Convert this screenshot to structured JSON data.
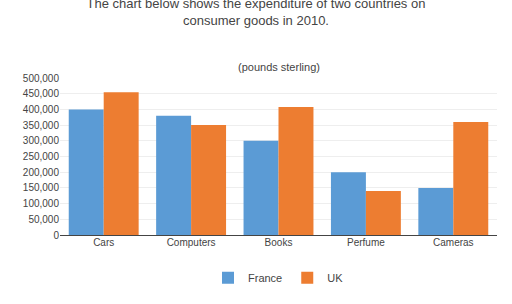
{
  "chart_data": {
    "type": "bar",
    "title": "The chart below shows the expenditure of two countries on\nconsumer goods in 2010.",
    "subtitle": "(pounds sterling)",
    "categories": [
      "Cars",
      "Computers",
      "Books",
      "Perfume",
      "Cameras"
    ],
    "series": [
      {
        "name": "France",
        "color": "#5B9BD5",
        "values": [
          400000,
          380000,
          300000,
          200000,
          150000
        ]
      },
      {
        "name": "UK",
        "color": "#ED7D31",
        "values": [
          455000,
          350000,
          408000,
          140000,
          360000
        ]
      }
    ],
    "ylim": [
      0,
      500000
    ],
    "yticks": [
      0,
      {
        "value": 50000,
        "label": "50,000"
      },
      {
        "value": 100000,
        "label": "100,000"
      },
      {
        "value": 150000,
        "label": "150,000"
      },
      {
        "value": 200000,
        "label": "200,000"
      },
      {
        "value": 250000,
        "label": "250,000"
      },
      {
        "value": 300000,
        "label": "300,000"
      },
      {
        "value": 350000,
        "label": "350,000"
      },
      {
        "value": 400000,
        "label": "400,000"
      },
      {
        "value": 450000,
        "label": "450,000"
      },
      {
        "value": 500000,
        "label": "500,000"
      }
    ],
    "grid": true,
    "legend": "bottom"
  }
}
